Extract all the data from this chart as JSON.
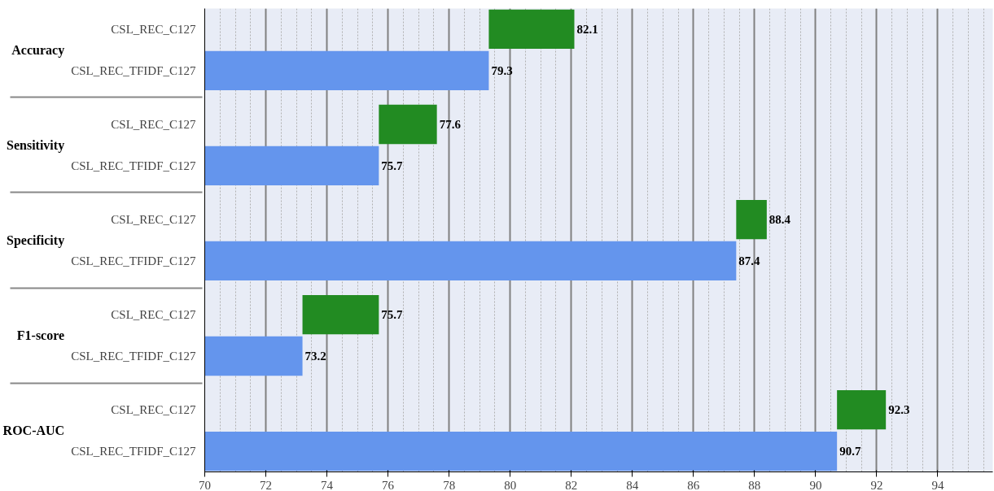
{
  "chart_data": {
    "type": "bar",
    "orientation": "horizontal",
    "categories": [
      "CSL_REC_C127",
      "CSL_REC_TFIDF_C127",
      "CSL_REC_C127",
      "CSL_REC_TFIDF_C127",
      "CSL_REC_C127",
      "CSL_REC_TFIDF_C127",
      "CSL_REC_C127",
      "CSL_REC_TFIDF_C127",
      "CSL_REC_C127",
      "CSL_REC_TFIDF_C127"
    ],
    "annotations": [
      "Accuracy",
      "Sensitivity",
      "Specificity",
      "F1-score",
      "ROC-AUC"
    ],
    "values": [
      2.8,
      79.3,
      1.9,
      75.7,
      1.0,
      87.4,
      2.5,
      73.2,
      1.6,
      90.7
    ],
    "base": [
      79.3,
      null,
      75.7,
      null,
      87.4,
      null,
      73.2,
      null,
      90.7,
      null
    ],
    "colors": [
      "#228b22",
      "#6495ed",
      "#228b22",
      "#6495ed",
      "#228b22",
      "#6495ed",
      "#228b22",
      "#6495ed",
      "#228b22",
      "#6495ed"
    ],
    "value_labels": [
      "82.1",
      "79.3",
      "77.6",
      "75.7",
      "88.4",
      "87.4",
      "75.7",
      "73.2",
      "92.3",
      "90.7"
    ],
    "xlim": [
      70,
      95.8
    ],
    "xticks": [
      70,
      72,
      74,
      76,
      78,
      80,
      82,
      84,
      86,
      88,
      90,
      92,
      94
    ],
    "grid": "x"
  }
}
